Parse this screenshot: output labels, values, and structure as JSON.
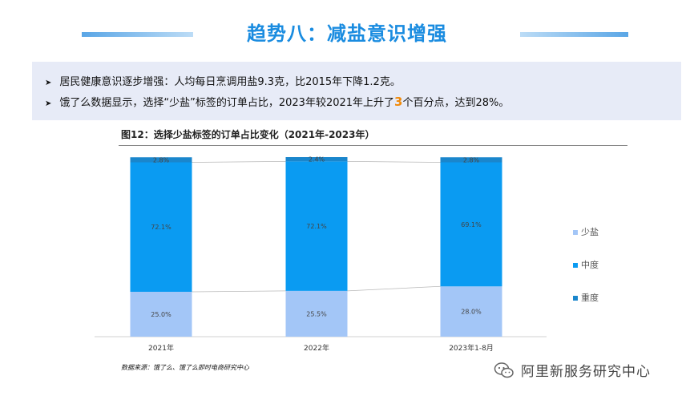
{
  "header": {
    "title": "趋势八：减盐意识增强"
  },
  "bullets": {
    "line1": "居民健康意识逐步增强：人均每日烹调用盐9.3克，比2015年下降1.2克。",
    "line2_prefix": "饿了么数据显示，选择“少盐”标签的订单占比，2023年较2021年上升了",
    "line2_highlight": "3",
    "line2_suffix": "个百分点，达到28%。",
    "highlight_color": "#f08a0b"
  },
  "figure": {
    "title": "图12：选择少盐标签的订单占比变化（2021年-2023年）",
    "source": "数据来源：饿了么、饿了么即时电商研究中心"
  },
  "brand": {
    "text": "阿里新服务研究中心",
    "icon": "wechat-icon"
  },
  "chart_data": {
    "type": "bar",
    "stacked": true,
    "percent": true,
    "categories": [
      "2021年",
      "2022年",
      "2023年1-8月"
    ],
    "series": [
      {
        "name": "少盐",
        "values": [
          25.0,
          25.5,
          28.0
        ],
        "labels": [
          "25.0%",
          "25.5%",
          "28.0%"
        ],
        "color": "#a3c6f7"
      },
      {
        "name": "中度",
        "values": [
          72.1,
          72.1,
          69.1
        ],
        "labels": [
          "72.1%",
          "72.1%",
          "69.1%"
        ],
        "color": "#0a9bf2"
      },
      {
        "name": "重度",
        "values": [
          2.8,
          2.4,
          2.8
        ],
        "labels": [
          "2.8%",
          "2.4%",
          "2.8%"
        ],
        "color": "#1a86cc"
      }
    ],
    "ylim": [
      0,
      100
    ],
    "legend": "right",
    "grid": false
  }
}
